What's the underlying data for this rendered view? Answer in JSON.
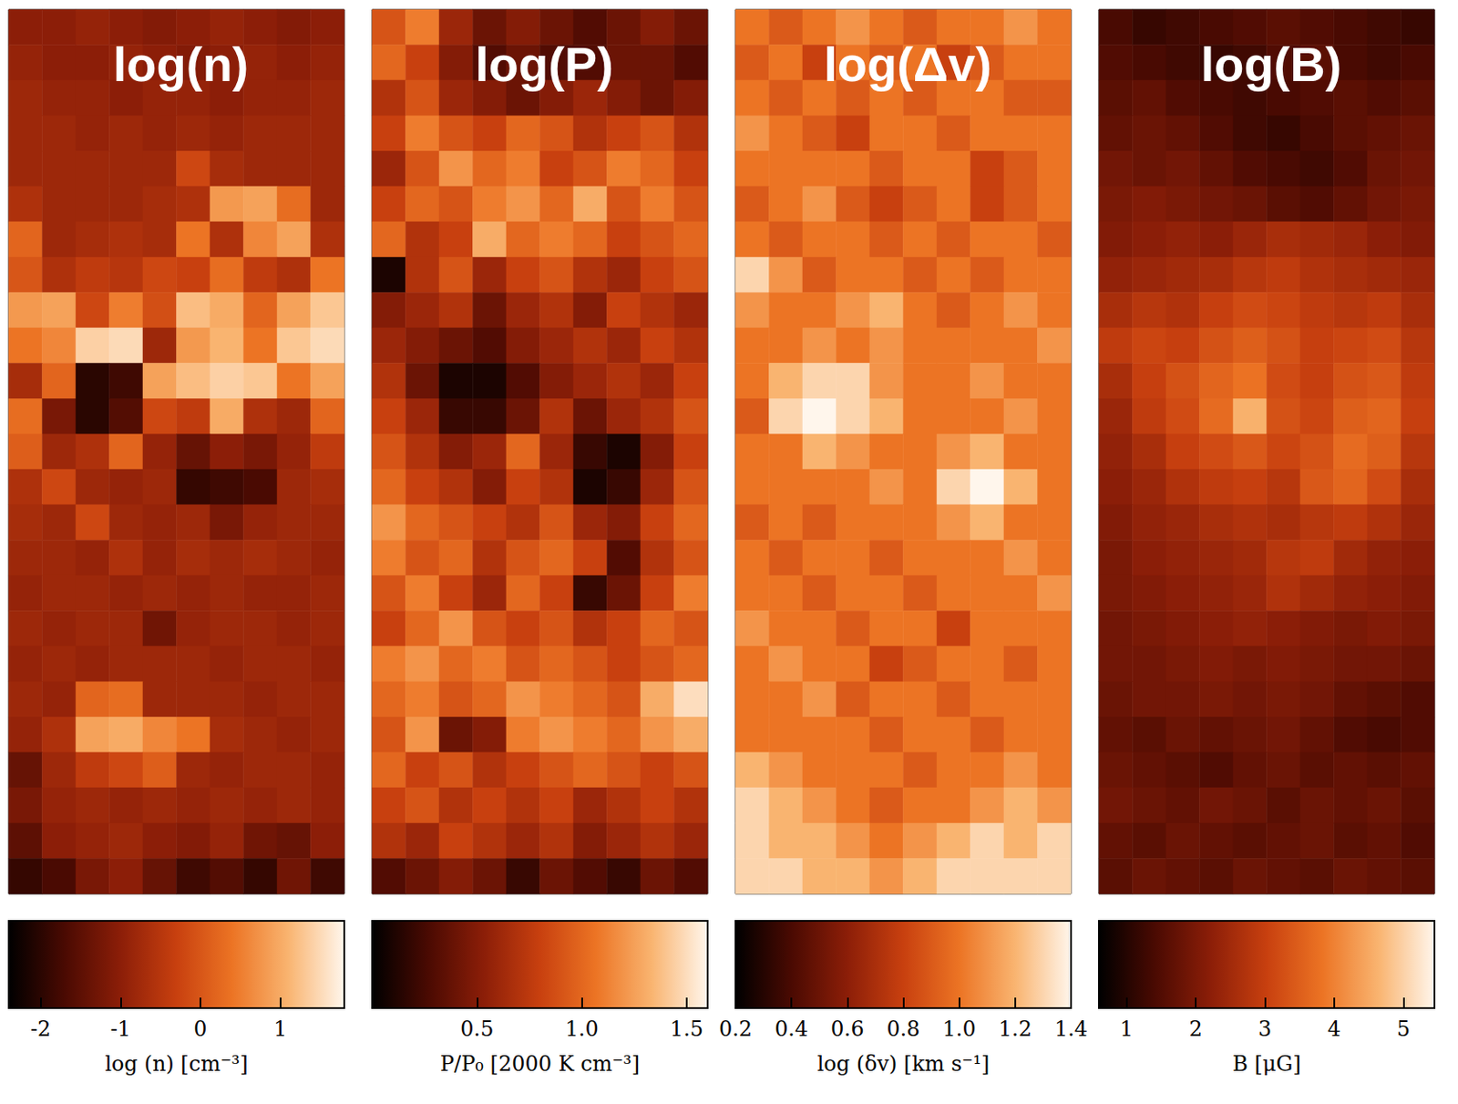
{
  "chart_data": [
    {
      "type": "heatmap",
      "title": "log(n)",
      "tick_labels": false,
      "colorbar": {
        "label": "log (n) [cm⁻³]",
        "range": [
          -2.4,
          1.8
        ],
        "ticks": [
          -2,
          -1,
          0,
          1
        ]
      },
      "cells": [
        [
          -1.0,
          -1.0,
          -0.9,
          -1.0,
          -1.1,
          -1.0,
          -0.9,
          -1.0,
          -1.1,
          -1.0
        ],
        [
          -0.9,
          -1.0,
          -1.0,
          -0.9,
          -1.0,
          -1.1,
          -1.0,
          -0.9,
          -1.0,
          -0.9
        ],
        [
          -0.8,
          -0.9,
          -0.9,
          -1.0,
          -0.9,
          -0.9,
          -1.0,
          -0.9,
          -0.9,
          -0.8
        ],
        [
          -0.8,
          -0.8,
          -0.9,
          -0.8,
          -0.9,
          -0.8,
          -0.9,
          -0.8,
          -0.8,
          -0.8
        ],
        [
          -0.8,
          -0.8,
          -0.8,
          -0.8,
          -0.8,
          -0.2,
          -0.7,
          -0.8,
          -0.8,
          -0.8
        ],
        [
          -0.6,
          -0.8,
          -0.8,
          -0.8,
          -0.7,
          -0.6,
          0.8,
          0.9,
          0.3,
          -0.8
        ],
        [
          0.2,
          -0.8,
          -0.7,
          -0.6,
          -0.7,
          0.4,
          -0.6,
          0.6,
          0.9,
          -0.6
        ],
        [
          0.0,
          -0.6,
          -0.4,
          -0.5,
          -0.2,
          -0.3,
          0.3,
          -0.4,
          -0.6,
          0.4
        ],
        [
          0.8,
          0.9,
          -0.2,
          0.5,
          -0.1,
          1.2,
          1.0,
          0.2,
          0.9,
          1.3
        ],
        [
          0.4,
          0.6,
          1.4,
          1.5,
          -0.8,
          0.8,
          1.1,
          0.4,
          1.3,
          1.5
        ],
        [
          -0.7,
          0.2,
          -2.0,
          -1.8,
          0.9,
          1.2,
          1.4,
          1.3,
          0.4,
          0.9
        ],
        [
          0.3,
          -1.2,
          -2.0,
          -1.6,
          -0.2,
          -0.4,
          1.0,
          -0.6,
          -0.8,
          0.2
        ],
        [
          0.1,
          -0.8,
          -0.6,
          0.2,
          -0.9,
          -1.4,
          -1.0,
          -1.2,
          -0.9,
          -0.4
        ],
        [
          -0.6,
          -0.2,
          -0.8,
          -0.9,
          -0.8,
          -1.9,
          -1.8,
          -1.7,
          -0.8,
          -0.7
        ],
        [
          -0.7,
          -0.8,
          -0.2,
          -0.8,
          -0.9,
          -0.8,
          -1.2,
          -0.9,
          -0.8,
          -0.8
        ],
        [
          -0.8,
          -0.8,
          -0.9,
          -0.6,
          -0.9,
          -0.7,
          -0.8,
          -0.7,
          -0.8,
          -0.9
        ],
        [
          -0.9,
          -0.8,
          -0.8,
          -0.9,
          -0.8,
          -0.9,
          -0.8,
          -0.9,
          -0.9,
          -0.8
        ],
        [
          -0.8,
          -0.9,
          -0.8,
          -0.8,
          -1.3,
          -0.9,
          -0.8,
          -0.8,
          -0.9,
          -0.8
        ],
        [
          -0.9,
          -0.8,
          -0.9,
          -0.8,
          -0.8,
          -0.8,
          -0.9,
          -0.8,
          -0.8,
          -0.9
        ],
        [
          -0.8,
          -0.9,
          0.2,
          0.3,
          -0.8,
          -0.8,
          -0.8,
          -0.9,
          -0.8,
          -0.8
        ],
        [
          -0.9,
          -0.6,
          0.9,
          1.0,
          0.6,
          0.4,
          -0.7,
          -0.8,
          -0.9,
          -0.8
        ],
        [
          -1.4,
          -0.8,
          -0.4,
          -0.2,
          0.1,
          -0.8,
          -0.9,
          -0.8,
          -0.8,
          -0.9
        ],
        [
          -1.2,
          -0.9,
          -0.8,
          -0.9,
          -0.8,
          -0.9,
          -0.8,
          -0.9,
          -0.8,
          -0.9
        ],
        [
          -1.5,
          -1.0,
          -0.9,
          -0.8,
          -1.0,
          -1.1,
          -0.9,
          -1.3,
          -1.4,
          -1.0
        ],
        [
          -1.9,
          -1.7,
          -1.2,
          -1.0,
          -1.4,
          -1.8,
          -1.6,
          -1.9,
          -1.3,
          -1.8
        ]
      ]
    },
    {
      "type": "heatmap",
      "title": "log(P)",
      "tick_labels": false,
      "colorbar": {
        "label": "P/P₀ [2000 K cm⁻³]",
        "range": [
          0,
          1.6
        ],
        "ticks": [
          0.5,
          {
            "value": 1,
            "label": "1.0"
          },
          1.5
        ]
      },
      "cells": [
        [
          0.9,
          1.1,
          0.6,
          0.4,
          0.5,
          0.4,
          0.3,
          0.4,
          0.5,
          0.4
        ],
        [
          1.0,
          0.8,
          0.5,
          0.3,
          0.4,
          0.3,
          0.3,
          0.4,
          0.4,
          0.3
        ],
        [
          0.7,
          0.9,
          0.6,
          0.5,
          0.4,
          0.5,
          0.6,
          0.5,
          0.4,
          0.5
        ],
        [
          0.8,
          1.1,
          0.9,
          0.8,
          1.0,
          0.9,
          0.7,
          0.8,
          0.9,
          0.7
        ],
        [
          0.6,
          0.9,
          1.2,
          1.0,
          1.1,
          0.8,
          0.9,
          1.1,
          1.0,
          0.8
        ],
        [
          0.8,
          1.0,
          0.9,
          1.1,
          1.2,
          1.0,
          1.3,
          0.9,
          1.1,
          0.9
        ],
        [
          1.0,
          0.7,
          0.8,
          1.3,
          1.0,
          1.1,
          1.0,
          0.8,
          0.9,
          1.0
        ],
        [
          0.1,
          0.7,
          0.9,
          0.6,
          0.8,
          0.9,
          0.7,
          0.6,
          0.8,
          0.9
        ],
        [
          0.5,
          0.6,
          0.7,
          0.4,
          0.6,
          0.7,
          0.5,
          0.8,
          0.7,
          0.6
        ],
        [
          0.6,
          0.5,
          0.4,
          0.3,
          0.5,
          0.6,
          0.7,
          0.6,
          0.8,
          0.7
        ],
        [
          0.7,
          0.4,
          0.1,
          0.1,
          0.3,
          0.5,
          0.6,
          0.7,
          0.6,
          0.8
        ],
        [
          0.8,
          0.6,
          0.2,
          0.2,
          0.4,
          0.7,
          0.4,
          0.6,
          0.7,
          0.9
        ],
        [
          0.9,
          0.7,
          0.5,
          0.6,
          1.0,
          0.6,
          0.2,
          0.1,
          0.5,
          0.8
        ],
        [
          1.0,
          0.8,
          0.7,
          0.5,
          0.8,
          0.7,
          0.1,
          0.2,
          0.6,
          0.9
        ],
        [
          1.2,
          1.0,
          0.9,
          0.8,
          0.7,
          0.9,
          0.6,
          0.5,
          0.8,
          1.0
        ],
        [
          1.1,
          0.9,
          1.0,
          0.7,
          0.9,
          1.0,
          0.8,
          0.3,
          0.7,
          0.9
        ],
        [
          0.9,
          1.1,
          0.8,
          0.6,
          1.0,
          0.8,
          0.2,
          0.4,
          0.8,
          1.1
        ],
        [
          0.8,
          1.0,
          1.2,
          0.9,
          0.8,
          0.9,
          0.7,
          0.8,
          1.0,
          0.9
        ],
        [
          1.1,
          1.2,
          1.0,
          1.1,
          0.9,
          1.0,
          0.9,
          0.8,
          0.9,
          1.0
        ],
        [
          1.0,
          1.1,
          0.9,
          1.0,
          1.2,
          1.1,
          1.0,
          0.9,
          1.3,
          1.5
        ],
        [
          0.9,
          1.2,
          0.4,
          0.5,
          1.1,
          1.2,
          1.1,
          1.0,
          1.2,
          1.3
        ],
        [
          1.0,
          0.8,
          0.9,
          0.7,
          0.8,
          0.9,
          1.0,
          0.9,
          0.8,
          0.9
        ],
        [
          0.8,
          0.9,
          0.7,
          0.8,
          0.7,
          0.8,
          0.6,
          0.7,
          0.8,
          0.7
        ],
        [
          0.7,
          0.6,
          0.8,
          0.7,
          0.6,
          0.7,
          0.5,
          0.6,
          0.7,
          0.6
        ],
        [
          0.3,
          0.4,
          0.5,
          0.4,
          0.2,
          0.4,
          0.3,
          0.2,
          0.4,
          0.3
        ]
      ]
    },
    {
      "type": "heatmap",
      "title": "log(Δv)",
      "tick_labels": false,
      "colorbar": {
        "label": "log (δv) [km s⁻¹]",
        "range": [
          0.2,
          1.4
        ],
        "ticks": [
          0.2,
          0.4,
          0.6,
          0.8,
          {
            "value": 1,
            "label": "1.0"
          },
          1.2,
          1.4
        ]
      },
      "cells": [
        [
          1.0,
          0.9,
          1.0,
          1.1,
          1.0,
          0.9,
          1.0,
          1.0,
          1.1,
          1.0
        ],
        [
          0.9,
          1.0,
          0.8,
          1.0,
          0.9,
          1.0,
          0.8,
          0.9,
          1.0,
          1.0
        ],
        [
          1.0,
          0.9,
          1.0,
          0.9,
          1.0,
          0.9,
          1.0,
          1.0,
          0.9,
          0.9
        ],
        [
          1.1,
          1.0,
          0.9,
          0.8,
          1.0,
          1.0,
          0.9,
          1.0,
          1.0,
          1.0
        ],
        [
          1.0,
          1.0,
          1.0,
          1.0,
          0.9,
          1.0,
          1.0,
          0.8,
          0.9,
          1.0
        ],
        [
          0.9,
          1.0,
          1.1,
          0.9,
          0.8,
          0.9,
          1.0,
          0.8,
          0.9,
          1.0
        ],
        [
          1.0,
          0.9,
          1.0,
          1.0,
          0.9,
          1.0,
          0.9,
          1.0,
          1.0,
          0.9
        ],
        [
          1.3,
          1.1,
          0.9,
          1.0,
          1.0,
          0.9,
          1.0,
          0.9,
          1.0,
          1.0
        ],
        [
          1.1,
          1.0,
          1.0,
          1.1,
          1.2,
          1.0,
          0.9,
          1.0,
          1.1,
          1.0
        ],
        [
          1.0,
          1.0,
          1.1,
          1.0,
          1.1,
          1.0,
          1.0,
          1.0,
          1.0,
          1.1
        ],
        [
          1.0,
          1.2,
          1.3,
          1.3,
          1.1,
          1.0,
          1.0,
          1.1,
          1.0,
          1.0
        ],
        [
          0.9,
          1.3,
          1.4,
          1.3,
          1.2,
          1.0,
          1.0,
          1.0,
          1.1,
          1.0
        ],
        [
          1.0,
          1.0,
          1.2,
          1.1,
          1.0,
          1.0,
          1.1,
          1.2,
          1.0,
          1.0
        ],
        [
          1.0,
          1.0,
          1.0,
          1.0,
          1.1,
          1.0,
          1.3,
          1.4,
          1.2,
          1.0
        ],
        [
          0.9,
          1.0,
          0.9,
          1.0,
          1.0,
          1.0,
          1.1,
          1.2,
          1.0,
          1.0
        ],
        [
          1.0,
          0.9,
          1.0,
          1.0,
          0.9,
          1.0,
          1.0,
          1.0,
          1.1,
          1.0
        ],
        [
          1.0,
          1.0,
          0.9,
          1.0,
          1.0,
          0.9,
          1.0,
          1.0,
          1.0,
          1.1
        ],
        [
          1.1,
          1.0,
          1.0,
          0.9,
          1.0,
          1.0,
          0.8,
          1.0,
          1.0,
          1.0
        ],
        [
          1.0,
          1.1,
          1.0,
          1.0,
          0.8,
          0.9,
          1.0,
          1.0,
          0.9,
          1.0
        ],
        [
          1.0,
          1.0,
          1.1,
          0.9,
          1.0,
          1.0,
          0.9,
          1.0,
          1.0,
          1.0
        ],
        [
          1.0,
          1.0,
          1.0,
          1.0,
          0.9,
          1.0,
          1.0,
          0.9,
          1.0,
          1.0
        ],
        [
          1.2,
          1.1,
          1.0,
          1.0,
          1.0,
          0.9,
          1.0,
          1.0,
          1.1,
          1.0
        ],
        [
          1.3,
          1.2,
          1.1,
          1.0,
          0.9,
          1.0,
          1.0,
          1.1,
          1.2,
          1.1
        ],
        [
          1.3,
          1.2,
          1.2,
          1.1,
          1.0,
          1.1,
          1.2,
          1.3,
          1.2,
          1.3
        ],
        [
          1.3,
          1.3,
          1.2,
          1.2,
          1.1,
          1.2,
          1.3,
          1.3,
          1.3,
          1.3
        ]
      ]
    },
    {
      "type": "heatmap",
      "title": "log(B)",
      "tick_labels": false,
      "colorbar": {
        "label": "B [μG]",
        "range": [
          0.6,
          5.45
        ],
        "ticks": [
          1,
          2,
          3,
          4,
          5
        ]
      },
      "cells": [
        [
          1.4,
          1.2,
          1.3,
          1.4,
          1.5,
          1.6,
          1.5,
          1.4,
          1.3,
          1.2
        ],
        [
          1.5,
          1.4,
          1.3,
          1.2,
          1.3,
          1.5,
          1.6,
          1.4,
          1.3,
          1.4
        ],
        [
          1.6,
          1.7,
          1.5,
          1.4,
          1.3,
          1.4,
          1.5,
          1.6,
          1.5,
          1.6
        ],
        [
          1.7,
          1.8,
          1.7,
          1.5,
          1.3,
          1.2,
          1.4,
          1.6,
          1.7,
          1.8
        ],
        [
          1.9,
          1.8,
          1.9,
          1.7,
          1.5,
          1.4,
          1.3,
          1.5,
          1.8,
          1.9
        ],
        [
          2.0,
          2.1,
          2.0,
          1.9,
          1.8,
          1.6,
          1.5,
          1.7,
          1.9,
          2.0
        ],
        [
          2.1,
          2.2,
          2.3,
          2.2,
          2.4,
          2.6,
          2.5,
          2.4,
          2.2,
          2.1
        ],
        [
          2.3,
          2.4,
          2.5,
          2.6,
          2.8,
          2.9,
          2.7,
          2.6,
          2.5,
          2.4
        ],
        [
          2.6,
          2.8,
          2.7,
          3.0,
          3.2,
          3.1,
          2.9,
          2.8,
          2.9,
          2.6
        ],
        [
          2.9,
          3.1,
          3.0,
          3.3,
          3.5,
          3.3,
          3.0,
          3.1,
          3.2,
          2.8
        ],
        [
          2.6,
          3.0,
          3.3,
          3.6,
          3.8,
          3.2,
          3.0,
          3.3,
          3.4,
          2.9
        ],
        [
          2.4,
          2.9,
          3.2,
          3.7,
          4.6,
          3.3,
          3.1,
          3.5,
          3.6,
          3.0
        ],
        [
          2.3,
          2.6,
          3.0,
          3.2,
          3.4,
          3.1,
          3.3,
          3.7,
          3.5,
          2.8
        ],
        [
          2.2,
          2.4,
          2.7,
          2.9,
          3.0,
          2.8,
          3.4,
          3.6,
          3.2,
          2.6
        ],
        [
          2.1,
          2.3,
          2.4,
          2.6,
          2.7,
          2.6,
          2.8,
          2.9,
          2.7,
          2.4
        ],
        [
          2.0,
          2.2,
          2.3,
          2.4,
          2.5,
          2.8,
          2.9,
          2.5,
          2.3,
          2.2
        ],
        [
          2.0,
          2.1,
          2.2,
          2.3,
          2.4,
          2.7,
          2.5,
          2.3,
          2.2,
          2.1
        ],
        [
          1.9,
          2.0,
          2.1,
          2.2,
          2.3,
          2.2,
          2.1,
          2.0,
          2.1,
          2.0
        ],
        [
          1.9,
          1.9,
          2.0,
          2.1,
          2.0,
          2.1,
          2.0,
          1.9,
          1.9,
          1.8
        ],
        [
          1.8,
          1.9,
          1.9,
          2.0,
          1.9,
          2.0,
          1.9,
          1.7,
          1.6,
          1.5
        ],
        [
          1.7,
          1.6,
          1.8,
          1.7,
          1.8,
          1.9,
          1.7,
          1.5,
          1.4,
          1.5
        ],
        [
          1.8,
          1.7,
          1.6,
          1.5,
          1.7,
          1.8,
          1.6,
          1.7,
          1.6,
          1.7
        ],
        [
          1.9,
          1.8,
          1.7,
          1.9,
          1.8,
          1.6,
          1.8,
          1.7,
          1.8,
          1.6
        ],
        [
          1.7,
          1.6,
          1.8,
          1.7,
          1.6,
          1.7,
          1.8,
          1.6,
          1.7,
          1.5
        ],
        [
          1.6,
          1.8,
          1.7,
          1.6,
          1.8,
          1.7,
          1.6,
          1.8,
          1.7,
          1.6
        ]
      ]
    }
  ]
}
